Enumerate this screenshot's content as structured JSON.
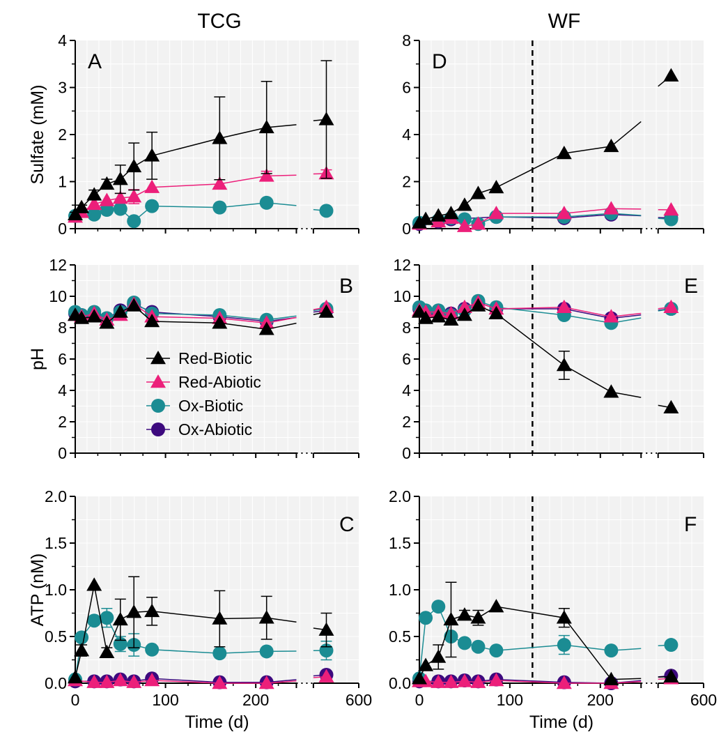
{
  "column_titles": [
    "TCG",
    "WF"
  ],
  "x_label": "Time (d)",
  "legend": [
    {
      "name": "Red-Biotic",
      "marker": "triangle",
      "color": "#000000"
    },
    {
      "name": "Red-Abiotic",
      "marker": "triangle",
      "color": "#ec1f7a"
    },
    {
      "name": "Ox-Biotic",
      "marker": "circle",
      "color": "#1b8c93"
    },
    {
      "name": "Ox-Abiotic",
      "marker": "circle",
      "color": "#3d0a7e"
    }
  ],
  "colors": {
    "panel_bg": "#f2f2f2",
    "grid": "#ffffff",
    "axis": "#000000"
  },
  "chart_data": [
    {
      "type": "line",
      "panel": "A",
      "column": "TCG",
      "ylabel": "Sulfate (mM)",
      "ylim": [
        0,
        4
      ],
      "yticks": [
        "0",
        "1",
        "2",
        "3",
        "4"
      ],
      "xlim": [
        0,
        600
      ],
      "xticks": [
        "0",
        "100",
        "200",
        "600"
      ],
      "x_axis_break": [
        245,
        565
      ],
      "series": [
        {
          "name": "Red-Biotic",
          "x": [
            0,
            7,
            21,
            35,
            50,
            65,
            85,
            160,
            212,
            575
          ],
          "y": [
            0.3,
            0.45,
            0.72,
            0.95,
            1.05,
            1.32,
            1.55,
            1.92,
            2.15,
            2.32
          ],
          "err": [
            0.05,
            0.05,
            0.1,
            0.1,
            0.3,
            0.5,
            0.5,
            0.88,
            0.98,
            1.25
          ]
        },
        {
          "name": "Red-Abiotic",
          "x": [
            0,
            7,
            21,
            35,
            50,
            65,
            85,
            160,
            212,
            575
          ],
          "y": [
            0.25,
            0.35,
            0.52,
            0.6,
            0.65,
            0.68,
            0.88,
            0.95,
            1.12,
            1.17
          ],
          "err": [
            0,
            0,
            0,
            0,
            0.1,
            0.15,
            0,
            0,
            0.1,
            0.08
          ]
        },
        {
          "name": "Ox-Biotic",
          "x": [
            0,
            21,
            35,
            50,
            65,
            85,
            160,
            212,
            575
          ],
          "y": [
            0.27,
            0.3,
            0.4,
            0.42,
            0.16,
            0.48,
            0.45,
            0.55,
            0.38
          ],
          "err": []
        },
        {
          "name": "Ox-Abiotic",
          "x": [],
          "y": [],
          "err": []
        }
      ]
    },
    {
      "type": "line",
      "panel": "B",
      "column": "TCG",
      "ylabel": "pH",
      "ylim": [
        0,
        12
      ],
      "yticks": [
        "0",
        "2",
        "4",
        "6",
        "8",
        "10",
        "12"
      ],
      "xlim": [
        0,
        600
      ],
      "xticks": [
        "0",
        "100",
        "200",
        "600"
      ],
      "x_axis_break": [
        245,
        565
      ],
      "series": [
        {
          "name": "Red-Biotic",
          "x": [
            0,
            7,
            21,
            35,
            50,
            65,
            85,
            160,
            212,
            575
          ],
          "y": [
            8.8,
            8.6,
            8.7,
            8.3,
            9.0,
            9.4,
            8.4,
            8.3,
            7.9,
            9.0
          ],
          "err": []
        },
        {
          "name": "Red-Abiotic",
          "x": [
            0,
            7,
            21,
            35,
            50,
            65,
            85,
            160,
            212,
            575
          ],
          "y": [
            8.8,
            8.7,
            8.9,
            8.5,
            8.8,
            9.5,
            8.7,
            8.6,
            8.3,
            9.3
          ],
          "err": []
        },
        {
          "name": "Ox-Biotic",
          "x": [
            0,
            7,
            21,
            35,
            50,
            65,
            85,
            160,
            212,
            575
          ],
          "y": [
            9.0,
            8.8,
            9.0,
            8.6,
            9.0,
            9.6,
            8.9,
            8.8,
            8.5,
            9.2
          ],
          "err": []
        },
        {
          "name": "Ox-Abiotic",
          "x": [
            0,
            7,
            21,
            35,
            50,
            65,
            85,
            160,
            212,
            575
          ],
          "y": [
            8.9,
            8.8,
            8.8,
            8.6,
            9.1,
            9.5,
            9.0,
            8.7,
            8.4,
            9.1
          ],
          "err": []
        }
      ]
    },
    {
      "type": "line",
      "panel": "C",
      "column": "TCG",
      "ylabel": "ATP (nM)",
      "ylim": [
        0,
        2
      ],
      "yticks": [
        "0.0",
        "0.5",
        "1.0",
        "1.5",
        "2.0"
      ],
      "xlim": [
        0,
        600
      ],
      "xticks": [
        "0",
        "100",
        "200",
        "600"
      ],
      "x_axis_break": [
        245,
        565
      ],
      "series": [
        {
          "name": "Red-Biotic",
          "x": [
            0,
            7,
            21,
            35,
            50,
            65,
            85,
            160,
            212,
            575
          ],
          "y": [
            0.06,
            0.35,
            1.05,
            0.33,
            0.68,
            0.76,
            0.77,
            0.69,
            0.7,
            0.57
          ],
          "err": [
            0,
            0.06,
            0,
            0.05,
            0.22,
            0.38,
            0.15,
            0.3,
            0.23,
            0.18
          ]
        },
        {
          "name": "Red-Abiotic",
          "x": [
            0,
            21,
            35,
            50,
            65,
            85,
            160,
            212,
            575
          ],
          "y": [
            0.03,
            0.01,
            0.01,
            0.03,
            0.01,
            0.03,
            0.0,
            0.0,
            0.07
          ],
          "err": []
        },
        {
          "name": "Ox-Biotic",
          "x": [
            0,
            7,
            21,
            35,
            50,
            65,
            85,
            160,
            212,
            575
          ],
          "y": [
            0.04,
            0.49,
            0.67,
            0.7,
            0.42,
            0.41,
            0.36,
            0.32,
            0.34,
            0.35
          ],
          "err": [
            0,
            0,
            0,
            0.1,
            0.08,
            0.12,
            0,
            0,
            0,
            0.1
          ]
        },
        {
          "name": "Ox-Abiotic",
          "x": [
            0,
            21,
            35,
            50,
            65,
            85,
            160,
            212,
            575
          ],
          "y": [
            0.02,
            0.02,
            0.02,
            0.04,
            0.02,
            0.05,
            0.01,
            0.01,
            0.09
          ],
          "err": []
        }
      ]
    },
    {
      "type": "line",
      "panel": "D",
      "column": "WF",
      "ylabel": "",
      "ylim": [
        0,
        8
      ],
      "yticks": [
        "0",
        "2",
        "4",
        "6",
        "8"
      ],
      "xlim": [
        0,
        600
      ],
      "xticks": [
        "0",
        "100",
        "200",
        "600"
      ],
      "x_axis_break": [
        245,
        565
      ],
      "vline": 125,
      "series": [
        {
          "name": "Red-Biotic",
          "x": [
            0,
            7,
            21,
            35,
            50,
            65,
            85,
            160,
            212,
            575
          ],
          "y": [
            0.25,
            0.4,
            0.55,
            0.65,
            1.0,
            1.5,
            1.75,
            3.2,
            3.5,
            6.5
          ],
          "err": []
        },
        {
          "name": "Red-Abiotic",
          "x": [
            0,
            21,
            35,
            50,
            65,
            85,
            160,
            212,
            575
          ],
          "y": [
            0.2,
            0.3,
            0.45,
            0.1,
            0.2,
            0.65,
            0.65,
            0.85,
            0.8
          ],
          "err": []
        },
        {
          "name": "Ox-Biotic",
          "x": [
            0,
            21,
            35,
            50,
            65,
            85,
            160,
            212,
            575
          ],
          "y": [
            0.25,
            0.35,
            0.45,
            0.4,
            0.2,
            0.5,
            0.5,
            0.65,
            0.4
          ],
          "err": []
        },
        {
          "name": "Ox-Abiotic",
          "x": [
            0,
            21,
            35,
            85,
            160,
            212,
            575
          ],
          "y": [
            0.2,
            0.3,
            0.4,
            0.5,
            0.45,
            0.6,
            0.45
          ],
          "err": []
        }
      ]
    },
    {
      "type": "line",
      "panel": "E",
      "column": "WF",
      "ylabel": "",
      "ylim": [
        0,
        12
      ],
      "yticks": [
        "0",
        "2",
        "4",
        "6",
        "8",
        "10",
        "12"
      ],
      "xlim": [
        0,
        600
      ],
      "xticks": [
        "0",
        "100",
        "200",
        "600"
      ],
      "x_axis_break": [
        245,
        565
      ],
      "vline": 125,
      "series": [
        {
          "name": "Red-Biotic",
          "x": [
            0,
            7,
            21,
            35,
            50,
            65,
            85,
            160,
            212,
            575
          ],
          "y": [
            9.0,
            8.6,
            8.7,
            8.5,
            8.8,
            9.4,
            8.9,
            5.6,
            3.9,
            2.9
          ],
          "err": [
            0,
            0,
            0,
            0,
            0,
            0,
            0,
            0.9,
            0,
            0
          ]
        },
        {
          "name": "Red-Abiotic",
          "x": [
            0,
            7,
            21,
            35,
            50,
            65,
            85,
            160,
            212,
            575
          ],
          "y": [
            9.1,
            9.0,
            9.0,
            8.9,
            9.3,
            9.6,
            9.2,
            9.3,
            8.7,
            9.3
          ],
          "err": []
        },
        {
          "name": "Ox-Biotic",
          "x": [
            0,
            7,
            21,
            35,
            50,
            65,
            85,
            160,
            212,
            575
          ],
          "y": [
            9.3,
            9.1,
            9.1,
            8.8,
            9.1,
            9.7,
            9.3,
            8.8,
            8.3,
            9.2
          ],
          "err": []
        },
        {
          "name": "Ox-Abiotic",
          "x": [
            0,
            7,
            21,
            35,
            50,
            65,
            85,
            160,
            212,
            575
          ],
          "y": [
            9.2,
            9.0,
            9.0,
            8.9,
            9.2,
            9.6,
            9.2,
            9.2,
            8.6,
            9.2
          ],
          "err": []
        }
      ]
    },
    {
      "type": "line",
      "panel": "F",
      "column": "WF",
      "ylabel": "",
      "ylim": [
        0,
        2
      ],
      "yticks": [
        "0.0",
        "0.5",
        "1.0",
        "1.5",
        "2.0"
      ],
      "xlim": [
        0,
        600
      ],
      "xticks": [
        "0",
        "100",
        "200",
        "600"
      ],
      "x_axis_break": [
        245,
        565
      ],
      "vline": 125,
      "series": [
        {
          "name": "Red-Biotic",
          "x": [
            0,
            7,
            21,
            35,
            50,
            65,
            85,
            160,
            212,
            575
          ],
          "y": [
            0.05,
            0.19,
            0.28,
            0.68,
            0.73,
            0.7,
            0.82,
            0.7,
            0.04,
            0.07
          ],
          "err": [
            0,
            0,
            0.13,
            0.4,
            0.05,
            0.08,
            0,
            0.1,
            0,
            0
          ]
        },
        {
          "name": "Red-Abiotic",
          "x": [
            0,
            7,
            21,
            35,
            50,
            65,
            85,
            160,
            212,
            575
          ],
          "y": [
            0.02,
            0.02,
            0.01,
            0.01,
            0.02,
            0.01,
            0.03,
            0.0,
            0.0,
            0.05
          ],
          "err": []
        },
        {
          "name": "Ox-Biotic",
          "x": [
            0,
            7,
            21,
            35,
            50,
            65,
            85,
            160,
            212,
            575
          ],
          "y": [
            0.05,
            0.7,
            0.82,
            0.5,
            0.43,
            0.39,
            0.35,
            0.41,
            0.35,
            0.41
          ],
          "err": [
            0,
            0,
            0,
            0,
            0,
            0,
            0,
            0.1,
            0,
            0
          ]
        },
        {
          "name": "Ox-Abiotic",
          "x": [
            0,
            21,
            35,
            50,
            65,
            85,
            160,
            212,
            575
          ],
          "y": [
            0.02,
            0.02,
            0.02,
            0.03,
            0.02,
            0.04,
            0.01,
            0.0,
            0.08
          ],
          "err": []
        }
      ]
    }
  ]
}
